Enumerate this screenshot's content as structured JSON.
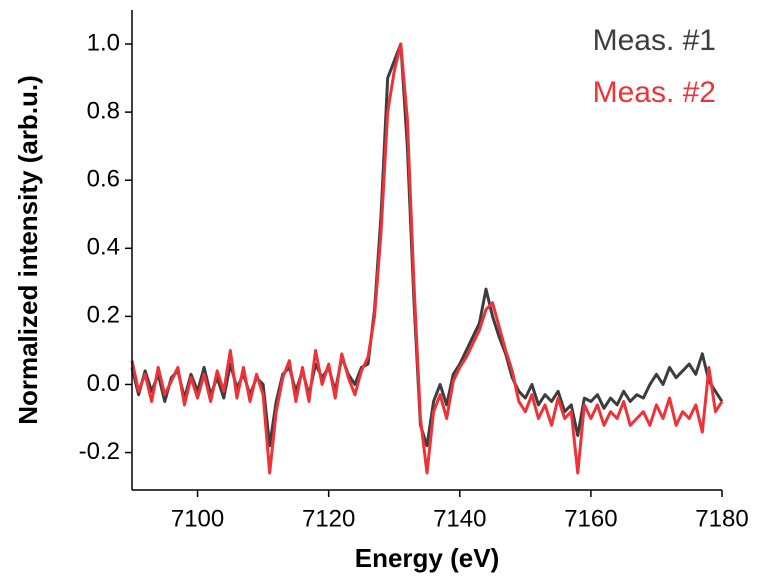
{
  "chart_data": {
    "type": "line",
    "xlabel": "Energy (eV)",
    "ylabel": "Normalized intensity (arb.u.)",
    "x": [
      7090,
      7091,
      7092,
      7093,
      7094,
      7095,
      7096,
      7097,
      7098,
      7099,
      7100,
      7101,
      7102,
      7103,
      7104,
      7105,
      7106,
      7107,
      7108,
      7109,
      7110,
      7111,
      7112,
      7113,
      7114,
      7115,
      7116,
      7117,
      7118,
      7119,
      7120,
      7121,
      7122,
      7123,
      7124,
      7125,
      7126,
      7127,
      7128,
      7129,
      7130,
      7131,
      7132,
      7133,
      7134,
      7135,
      7136,
      7137,
      7138,
      7139,
      7140,
      7141,
      7142,
      7143,
      7144,
      7145,
      7146,
      7147,
      7148,
      7149,
      7150,
      7151,
      7152,
      7153,
      7154,
      7155,
      7156,
      7157,
      7158,
      7159,
      7160,
      7161,
      7162,
      7163,
      7164,
      7165,
      7166,
      7167,
      7168,
      7169,
      7170,
      7171,
      7172,
      7173,
      7174,
      7175,
      7176,
      7177,
      7178,
      7179,
      7180
    ],
    "series": [
      {
        "name": "Meas. #1",
        "color": "#3d3d3d",
        "values": [
          0.05,
          -0.03,
          0.04,
          -0.02,
          0.03,
          -0.05,
          0.02,
          0.04,
          -0.04,
          0.03,
          -0.02,
          0.05,
          -0.03,
          0.02,
          -0.04,
          0.06,
          -0.01,
          0.03,
          -0.03,
          0.02,
          0.0,
          -0.18,
          -0.05,
          0.03,
          0.05,
          -0.02,
          0.04,
          -0.03,
          0.06,
          0.02,
          0.05,
          -0.02,
          0.08,
          0.03,
          0.0,
          0.05,
          0.06,
          0.22,
          0.5,
          0.9,
          0.95,
          1.0,
          0.7,
          0.25,
          -0.12,
          -0.18,
          -0.05,
          0.0,
          -0.06,
          0.03,
          0.06,
          0.1,
          0.14,
          0.18,
          0.28,
          0.2,
          0.14,
          0.09,
          0.02,
          -0.02,
          -0.04,
          0.0,
          -0.06,
          -0.03,
          -0.05,
          -0.02,
          -0.08,
          -0.06,
          -0.15,
          -0.04,
          -0.05,
          -0.03,
          -0.07,
          -0.04,
          -0.06,
          -0.02,
          -0.05,
          -0.03,
          -0.04,
          0.0,
          0.03,
          0.0,
          0.05,
          0.02,
          0.04,
          0.06,
          0.03,
          0.09,
          0.01,
          -0.02,
          -0.05
        ]
      },
      {
        "name": "Meas. #2",
        "color": "#ee3338",
        "values": [
          0.07,
          -0.02,
          0.03,
          -0.05,
          0.05,
          -0.03,
          0.01,
          0.05,
          -0.06,
          0.02,
          -0.04,
          0.03,
          -0.05,
          0.04,
          -0.02,
          0.1,
          -0.04,
          0.05,
          -0.05,
          0.03,
          -0.03,
          -0.26,
          -0.08,
          0.02,
          0.07,
          -0.05,
          0.05,
          -0.05,
          0.1,
          0.0,
          0.06,
          -0.04,
          0.09,
          0.02,
          -0.03,
          0.04,
          0.08,
          0.2,
          0.45,
          0.8,
          0.92,
          1.0,
          0.78,
          0.3,
          -0.1,
          -0.26,
          -0.08,
          -0.03,
          -0.1,
          0.01,
          0.05,
          0.08,
          0.12,
          0.16,
          0.22,
          0.24,
          0.17,
          0.1,
          0.04,
          -0.05,
          -0.08,
          -0.03,
          -0.1,
          -0.06,
          -0.12,
          -0.04,
          -0.1,
          -0.08,
          -0.26,
          -0.06,
          -0.1,
          -0.06,
          -0.12,
          -0.08,
          -0.1,
          -0.05,
          -0.12,
          -0.1,
          -0.08,
          -0.12,
          -0.06,
          -0.1,
          -0.04,
          -0.12,
          -0.08,
          -0.1,
          -0.06,
          -0.14,
          0.05,
          -0.08,
          -0.05
        ]
      }
    ],
    "xlim": [
      7090,
      7180
    ],
    "xticks": [
      7100,
      7120,
      7140,
      7160,
      7180
    ],
    "ylim": [
      -0.31,
      1.1
    ],
    "yticks": [
      -0.2,
      {
        "value": 0,
        "label": "0.0"
      },
      0.2,
      0.4,
      0.6,
      0.8,
      {
        "value": 1,
        "label": "1.0"
      }
    ],
    "legend": "upper right"
  }
}
